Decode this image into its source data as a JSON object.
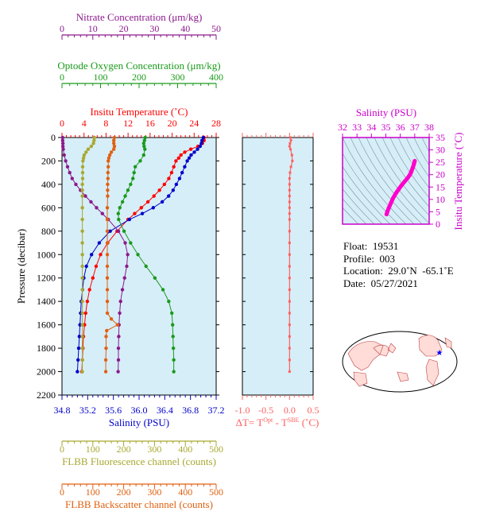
{
  "colors": {
    "panel_bg": "#d6eef8",
    "temperature": "#ff0000",
    "salinity": "#0000cc",
    "nitrate": "#8b1a8b",
    "oxygen": "#1a9a1a",
    "fluorescence": "#a8a832",
    "backscatter": "#e06010",
    "delta_t": "#ff6060",
    "ts_curve": "#ff00cc",
    "ts_axis": "#cc00cc"
  },
  "float_info": {
    "float": "Float:  19531",
    "profile": "Profile:  003",
    "location": "Location:  29.0˚N  -65.1˚E",
    "date": "Date:  05/27/2021"
  },
  "chart_data": [
    {
      "type": "line",
      "panel": "profile",
      "ylabel": "Pressure (decibar)",
      "ylim": [
        2200,
        0
      ],
      "yticks": [
        0,
        200,
        400,
        600,
        800,
        1000,
        1200,
        1400,
        1600,
        1800,
        2000,
        2200
      ],
      "grid": false,
      "axes": [
        {
          "key": "nitrate",
          "label": "Nitrate Concentration (μm/kg)",
          "position": "top-1",
          "range": [
            0,
            50
          ],
          "ticks": [
            0,
            10,
            20,
            30,
            40,
            50
          ],
          "color": "#8b1a8b"
        },
        {
          "key": "oxygen",
          "label": "Optode Oxygen Concentration (μm/kg)",
          "position": "top-2",
          "range": [
            0,
            400
          ],
          "ticks": [
            0,
            100,
            200,
            300,
            400
          ],
          "color": "#1a9a1a"
        },
        {
          "key": "temperature",
          "label": "Insitu Temperature (˚C)",
          "position": "top-3",
          "range": [
            0,
            28
          ],
          "ticks": [
            0,
            4,
            8,
            12,
            16,
            20,
            24,
            28
          ],
          "color": "#ff0000"
        },
        {
          "key": "salinity",
          "label": "Salinity (PSU)",
          "position": "bottom-1",
          "range": [
            34.8,
            37.2
          ],
          "ticks": [
            "34.8",
            "35.2",
            "35.6",
            "36.0",
            "36.4",
            "36.8",
            "37.2"
          ],
          "color": "#0000cc"
        },
        {
          "key": "fluorescence",
          "label": "FLBB Fluorescence channel (counts)",
          "position": "bottom-2",
          "range": [
            0,
            500
          ],
          "ticks": [
            0,
            100,
            200,
            300,
            400,
            500
          ],
          "color": "#a8a832"
        },
        {
          "key": "backscatter",
          "label": "FLBB Backscatter channel (counts)",
          "position": "bottom-3",
          "range": [
            0,
            500
          ],
          "ticks": [
            0,
            100,
            200,
            300,
            400,
            500
          ],
          "color": "#e06010"
        }
      ],
      "series": [
        {
          "key": "temperature",
          "axis": "temperature",
          "pressure": [
            0,
            25,
            50,
            75,
            100,
            125,
            150,
            175,
            200,
            250,
            300,
            350,
            400,
            450,
            500,
            550,
            600,
            650,
            700,
            800,
            900,
            1000,
            1100,
            1200,
            1300,
            1400,
            1500,
            1600,
            1700,
            1800,
            1900,
            2000
          ],
          "values": [
            25.8,
            25.8,
            25.5,
            24.7,
            23.4,
            22.3,
            21.6,
            21.2,
            20.7,
            20.3,
            19.9,
            19.4,
            18.6,
            17.7,
            16.7,
            15.6,
            14.4,
            13.2,
            12.0,
            10.0,
            8.3,
            7.0,
            6.2,
            5.6,
            5.0,
            4.6,
            4.3,
            4.1,
            3.9,
            3.8,
            3.7,
            3.6
          ]
        },
        {
          "key": "salinity",
          "axis": "salinity",
          "pressure": [
            0,
            25,
            50,
            75,
            100,
            125,
            150,
            175,
            200,
            250,
            300,
            350,
            400,
            450,
            500,
            550,
            600,
            650,
            700,
            800,
            900,
            1000,
            1100,
            1200,
            1300,
            1400,
            1500,
            1600,
            1700,
            1800,
            1900,
            2000
          ],
          "values": [
            37.0,
            36.98,
            36.97,
            36.95,
            36.91,
            36.86,
            36.81,
            36.78,
            36.75,
            36.71,
            36.67,
            36.63,
            36.58,
            36.53,
            36.46,
            36.36,
            36.22,
            36.05,
            35.85,
            35.55,
            35.38,
            35.26,
            35.18,
            35.14,
            35.12,
            35.1,
            35.09,
            35.08,
            35.07,
            35.06,
            35.05,
            35.04
          ]
        },
        {
          "key": "nitrate",
          "axis": "nitrate",
          "pressure": [
            0,
            25,
            50,
            75,
            100,
            150,
            200,
            250,
            300,
            350,
            400,
            450,
            500,
            550,
            600,
            650,
            700,
            800,
            900,
            1000,
            1100,
            1200,
            1300,
            1400,
            1500,
            1600,
            1700,
            1800,
            1900,
            2000
          ],
          "values": [
            0.2,
            0.2,
            0.3,
            0.3,
            0.4,
            0.7,
            1.2,
            1.8,
            2.5,
            3.3,
            4.5,
            6.0,
            7.6,
            9.4,
            11.2,
            13.1,
            15.0,
            18.3,
            20.5,
            21.3,
            21.0,
            20.3,
            19.6,
            19.0,
            18.7,
            18.5,
            18.4,
            18.3,
            18.3,
            18.2
          ]
        },
        {
          "key": "oxygen",
          "axis": "oxygen",
          "pressure": [
            0,
            25,
            50,
            75,
            100,
            150,
            200,
            250,
            300,
            350,
            400,
            450,
            500,
            550,
            600,
            650,
            700,
            800,
            900,
            1000,
            1100,
            1200,
            1300,
            1400,
            1500,
            1600,
            1700,
            1800,
            1900,
            2000
          ],
          "values": [
            216,
            214,
            212,
            213,
            215,
            212,
            203,
            190,
            187,
            184,
            178,
            171,
            164,
            157,
            150,
            146,
            147,
            161,
            178,
            197,
            218,
            241,
            262,
            277,
            285,
            287,
            288,
            289,
            290,
            290
          ]
        },
        {
          "key": "fluorescence",
          "axis": "fluorescence",
          "pressure": [
            0,
            25,
            50,
            75,
            100,
            125,
            150,
            175,
            200,
            250,
            300,
            350,
            400,
            450,
            500,
            600,
            700,
            800,
            900,
            1000,
            1100,
            1200,
            1300,
            1400,
            1500,
            1600,
            1700,
            1800,
            1900,
            2000
          ],
          "values": [
            105,
            104,
            102,
            95,
            85,
            78,
            72,
            70,
            68,
            67,
            67,
            67,
            66,
            66,
            66,
            66,
            66,
            66,
            66,
            66,
            66,
            66,
            66,
            66,
            66,
            66,
            66,
            66,
            66,
            66
          ]
        },
        {
          "key": "backscatter",
          "axis": "backscatter",
          "pressure": [
            0,
            25,
            50,
            75,
            100,
            125,
            150,
            175,
            200,
            250,
            300,
            350,
            400,
            450,
            500,
            600,
            700,
            800,
            900,
            1000,
            1100,
            1200,
            1300,
            1400,
            1500,
            1550,
            1600,
            1650,
            1700,
            1800,
            1900,
            2000
          ],
          "values": [
            170,
            168,
            168,
            170,
            168,
            160,
            155,
            152,
            150,
            150,
            149,
            149,
            148,
            148,
            148,
            147,
            147,
            147,
            147,
            147,
            147,
            147,
            147,
            147,
            147,
            160,
            180,
            145,
            143,
            143,
            142,
            142
          ]
        }
      ]
    },
    {
      "type": "line",
      "panel": "delta_t",
      "xlabel": "ΔT= T",
      "xlabel_sup1": "Opt",
      "xlabel_mid": " - T",
      "xlabel_sup2": "SBE",
      "xlabel_end": " (˚C)",
      "xlim": [
        -1.0,
        0.5
      ],
      "xticks": [
        "-1.0",
        "-0.5",
        "0.0",
        "0.5"
      ],
      "ylim": [
        2200,
        0
      ],
      "series": [
        {
          "key": "delta_t",
          "pressure": [
            0,
            25,
            50,
            75,
            100,
            150,
            200,
            250,
            300,
            350,
            400,
            450,
            500,
            550,
            600,
            650,
            700,
            800,
            900,
            1000,
            1100,
            1200,
            1300,
            1400,
            1500,
            1600,
            1700,
            1800,
            1900,
            2000
          ],
          "values": [
            0.02,
            0.03,
            0.01,
            0.0,
            0.02,
            0.05,
            0.06,
            0.03,
            0.01,
            0.0,
            0.0,
            0.0,
            0.0,
            0.0,
            0.0,
            0.0,
            0.0,
            0.0,
            0.0,
            0.0,
            0.0,
            0.0,
            0.0,
            0.0,
            0.0,
            0.0,
            0.0,
            0.0,
            0.0,
            0.0
          ]
        }
      ]
    },
    {
      "type": "scatter",
      "panel": "ts_diagram",
      "xlabel": "Salinity (PSU)",
      "ylabel": "Insitu Temperature (˚C)",
      "xlim": [
        32,
        38
      ],
      "ylim": [
        0,
        35
      ],
      "xticks": [
        32,
        33,
        34,
        35,
        36,
        37,
        38
      ],
      "yticks": [
        0,
        5,
        10,
        15,
        20,
        25,
        30,
        35
      ],
      "series": [
        {
          "key": "ts",
          "x": [
            35.05,
            35.1,
            35.2,
            35.35,
            35.5,
            35.7,
            35.9,
            36.1,
            36.3,
            36.5,
            36.65,
            36.75,
            36.85,
            36.95,
            37.0
          ],
          "y": [
            4.0,
            5.0,
            6.5,
            8.5,
            10.5,
            12.5,
            14.2,
            15.8,
            17.2,
            18.6,
            19.8,
            21.0,
            22.6,
            24.3,
            25.5
          ]
        }
      ]
    }
  ]
}
